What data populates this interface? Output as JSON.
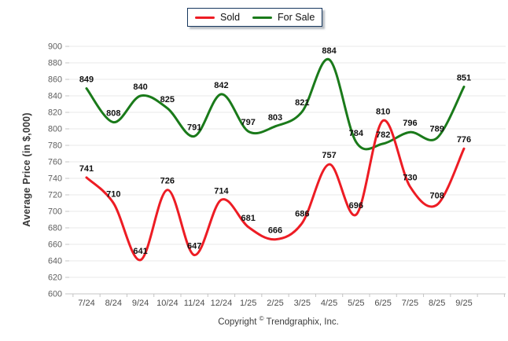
{
  "legend": {
    "items": [
      {
        "label": "Sold",
        "color": "#ed1c24"
      },
      {
        "label": "For Sale",
        "color": "#1a7a1a"
      }
    ]
  },
  "y_axis_title": "Average Price (in $,000)",
  "footer": {
    "prefix": "Copyright",
    "symbol": "©",
    "company": "Trendgraphix, Inc."
  },
  "chart_data": {
    "type": "line",
    "title": "",
    "categories": [
      "7/24",
      "8/24",
      "9/24",
      "10/24",
      "11/24",
      "12/24",
      "1/25",
      "2/25",
      "3/25",
      "4/25",
      "5/25",
      "6/25",
      "7/25",
      "8/25",
      "9/25"
    ],
    "series": [
      {
        "name": "Sold",
        "color": "#ed1c24",
        "values": [
          741,
          710,
          641,
          726,
          647,
          714,
          681,
          666,
          686,
          757,
          696,
          810,
          730,
          708,
          776
        ]
      },
      {
        "name": "For Sale",
        "color": "#1a7a1a",
        "values": [
          849,
          808,
          840,
          825,
          791,
          842,
          797,
          803,
          821,
          884,
          784,
          782,
          796,
          789,
          851
        ]
      }
    ],
    "xlabel": "",
    "ylabel": "Average Price (in $,000)",
    "ylim": [
      600,
      900
    ],
    "ytick_step": 20,
    "grid": true,
    "grid_color": "#e9e9e9",
    "axis_color": "#c4c4c4",
    "tick_label_color": "#5f5f5f",
    "data_label_color": "#121212",
    "legend_position": "top",
    "line_style": "smooth",
    "data_labels": true
  }
}
